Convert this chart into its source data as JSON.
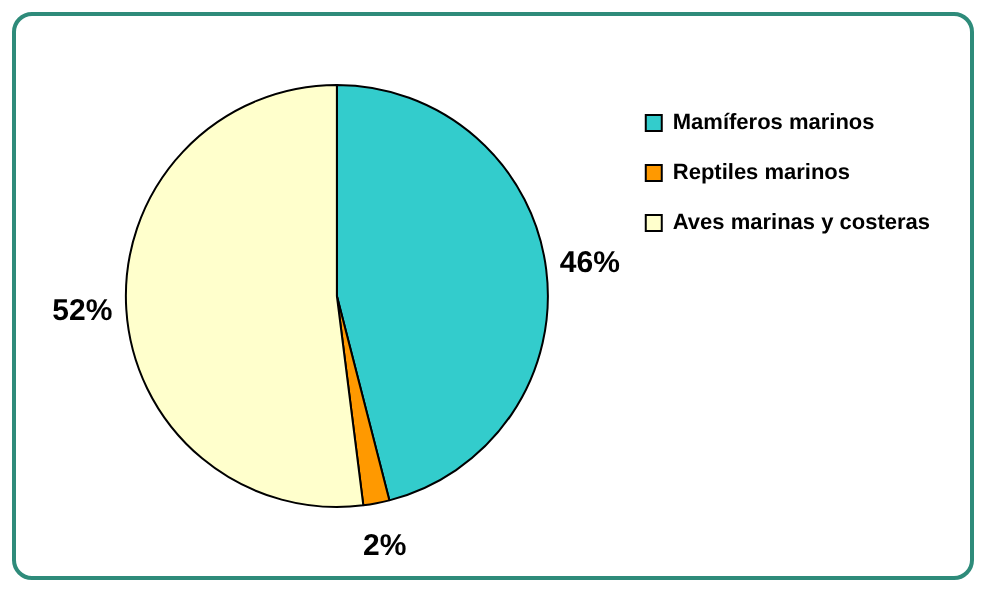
{
  "chart_data": {
    "type": "pie",
    "categories": [
      "Mamíferos marinos",
      "Reptiles marinos",
      "Aves marinas y costeras"
    ],
    "values": [
      46,
      2,
      52
    ],
    "colors": [
      "#33cccc",
      "#ff9900",
      "#ffffcc"
    ],
    "value_labels": [
      "46%",
      "2%",
      "52%"
    ],
    "legend": "top right"
  }
}
